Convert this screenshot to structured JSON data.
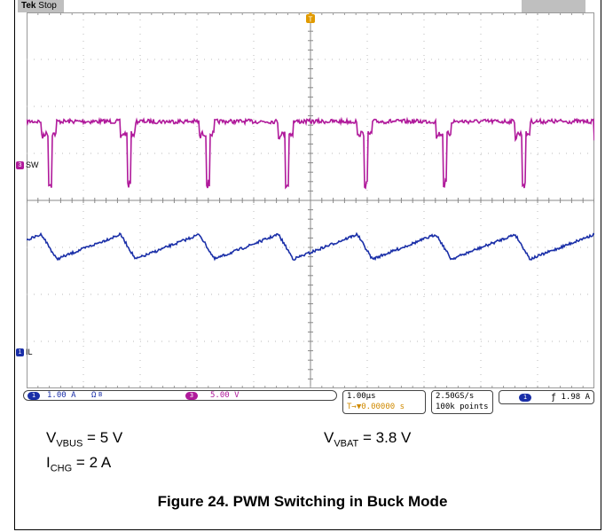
{
  "header": {
    "brand": "Tek",
    "status": "Stop"
  },
  "channels": {
    "ch3": {
      "number": "3",
      "label": "SW",
      "color": "#b01a9b"
    },
    "ch1": {
      "number": "1",
      "label": "IL",
      "color": "#1a2fa8"
    }
  },
  "trigger_marker": "T",
  "readouts": {
    "ch1_scale": "1.00 A",
    "ch1_coupling": "Ω",
    "ch1_bw": "B",
    "ch3_scale": "5.00 V",
    "timebase": "1.00µs",
    "trigger_pos": "T→▼0.00000 s",
    "sample_rate": "2.50GS/s",
    "record_length": "100k points",
    "trigger_level": "1.98 A"
  },
  "conditions": {
    "vbus": {
      "sym": "V",
      "sub": "VBUS",
      "value": "= 5 V"
    },
    "vbat": {
      "sym": "V",
      "sub": "VBAT",
      "value": "= 3.8 V"
    },
    "ichg": {
      "sym": "I",
      "sub": "CHG",
      "value": "= 2 A"
    }
  },
  "figure_title": "Figure 24. PWM Switching in Buck Mode",
  "chart_data": {
    "type": "line",
    "grid": true,
    "divisions": {
      "x": 10,
      "y": 8
    },
    "period_divisions": 1.39,
    "series": [
      {
        "name": "SW",
        "kind": "square",
        "high_div": 2.4,
        "low_div": 0.5,
        "duty": 0.81,
        "color": "#b01a9b"
      },
      {
        "name": "IL",
        "kind": "sawtooth",
        "min_div": 2.2,
        "max_div": 2.8,
        "duty": 0.81,
        "color": "#1a2fa8"
      }
    ]
  }
}
